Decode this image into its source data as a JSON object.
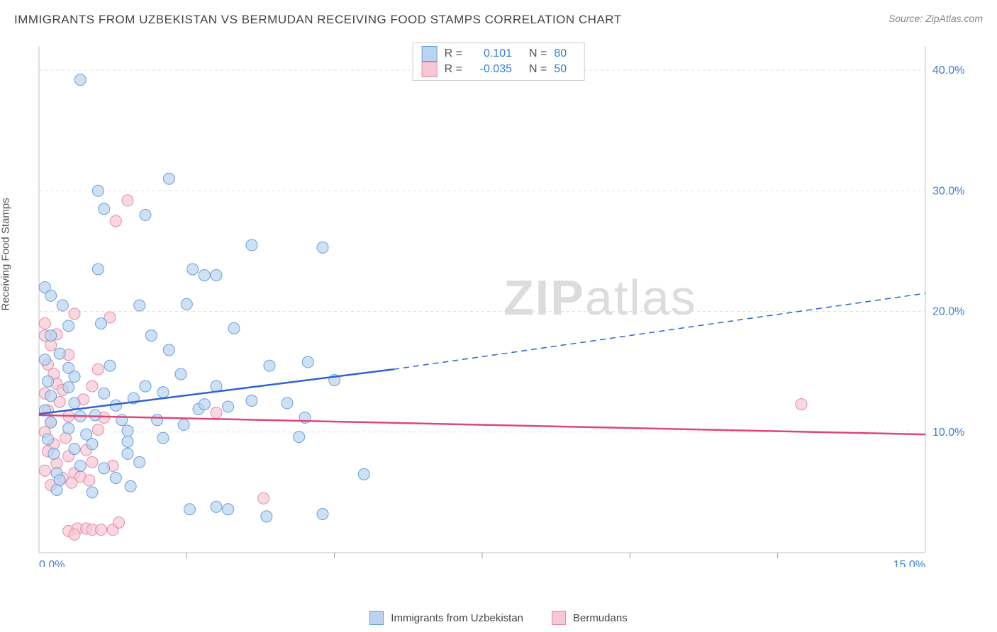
{
  "header": {
    "title": "IMMIGRANTS FROM UZBEKISTAN VS BERMUDAN RECEIVING FOOD STAMPS CORRELATION CHART",
    "source": "Source: ZipAtlas.com"
  },
  "chart": {
    "type": "scatter",
    "ylabel": "Receiving Food Stamps",
    "background_color": "#ffffff",
    "grid_color": "#e0e0e0",
    "axis_color": "#c0c0c0",
    "tick_color": "#a0a0a0",
    "label_color_blue": "#3b7dd8",
    "xlim": [
      0,
      15
    ],
    "ylim": [
      0,
      42
    ],
    "x_ticks": [
      {
        "pos": 0,
        "label": "0.0%"
      },
      {
        "pos": 15,
        "label": "15.0%"
      }
    ],
    "x_minor_ticks": [
      2.5,
      5,
      7.5,
      10,
      12.5
    ],
    "y_ticks": [
      {
        "pos": 10,
        "label": "10.0%"
      },
      {
        "pos": 20,
        "label": "20.0%"
      },
      {
        "pos": 30,
        "label": "30.0%"
      },
      {
        "pos": 40,
        "label": "40.0%"
      }
    ],
    "watermark": {
      "bold": "ZIP",
      "rest": "atlas"
    },
    "series": [
      {
        "name": "Immigrants from Uzbekistan",
        "color_fill": "#b9d3f0",
        "color_stroke": "#6a9fd8",
        "trend_color": "#2e64c9",
        "R": "0.101",
        "N": "80",
        "trend": {
          "x1": 0,
          "y1": 11.5,
          "x2_solid": 6.0,
          "y2_solid": 15.2,
          "x2_dash": 15,
          "y2_dash": 21.5
        },
        "marker_radius": 8,
        "points": [
          [
            0.7,
            39.2
          ],
          [
            1.0,
            30.0
          ],
          [
            2.2,
            31.0
          ],
          [
            1.1,
            28.5
          ],
          [
            1.8,
            28.0
          ],
          [
            2.6,
            23.5
          ],
          [
            2.8,
            23.0
          ],
          [
            3.6,
            25.5
          ],
          [
            4.8,
            25.3
          ],
          [
            3.0,
            23.0
          ],
          [
            1.0,
            23.5
          ],
          [
            1.7,
            20.5
          ],
          [
            2.5,
            20.6
          ],
          [
            3.3,
            18.6
          ],
          [
            0.1,
            22.0
          ],
          [
            0.2,
            21.3
          ],
          [
            0.4,
            20.5
          ],
          [
            0.5,
            18.8
          ],
          [
            0.2,
            18.0
          ],
          [
            0.35,
            16.5
          ],
          [
            0.1,
            16.0
          ],
          [
            0.5,
            15.3
          ],
          [
            0.6,
            14.6
          ],
          [
            0.15,
            14.2
          ],
          [
            0.5,
            13.7
          ],
          [
            0.2,
            13.0
          ],
          [
            0.6,
            12.4
          ],
          [
            0.1,
            11.8
          ],
          [
            0.7,
            11.3
          ],
          [
            0.2,
            10.8
          ],
          [
            0.5,
            10.3
          ],
          [
            0.8,
            9.8
          ],
          [
            0.15,
            9.4
          ],
          [
            0.9,
            9.0
          ],
          [
            0.6,
            8.6
          ],
          [
            0.25,
            8.2
          ],
          [
            0.7,
            7.2
          ],
          [
            0.3,
            6.6
          ],
          [
            0.35,
            6.0
          ],
          [
            0.3,
            5.2
          ],
          [
            0.9,
            5.0
          ],
          [
            1.1,
            13.2
          ],
          [
            1.2,
            15.5
          ],
          [
            1.3,
            12.2
          ],
          [
            1.4,
            11.0
          ],
          [
            1.5,
            10.1
          ],
          [
            1.5,
            9.2
          ],
          [
            1.5,
            8.2
          ],
          [
            1.6,
            12.8
          ],
          [
            1.7,
            7.5
          ],
          [
            1.55,
            5.5
          ],
          [
            1.1,
            7.0
          ],
          [
            1.3,
            6.2
          ],
          [
            0.95,
            11.4
          ],
          [
            2.0,
            11.0
          ],
          [
            2.1,
            13.3
          ],
          [
            2.2,
            16.8
          ],
          [
            2.1,
            9.5
          ],
          [
            2.4,
            14.8
          ],
          [
            2.7,
            11.9
          ],
          [
            2.8,
            12.3
          ],
          [
            2.45,
            10.6
          ],
          [
            3.2,
            12.1
          ],
          [
            3.6,
            12.6
          ],
          [
            3.0,
            13.8
          ],
          [
            2.55,
            3.6
          ],
          [
            3.0,
            3.8
          ],
          [
            3.2,
            3.6
          ],
          [
            3.9,
            15.5
          ],
          [
            3.85,
            3.0
          ],
          [
            4.2,
            12.4
          ],
          [
            4.5,
            11.2
          ],
          [
            4.55,
            15.8
          ],
          [
            4.8,
            3.2
          ],
          [
            5.5,
            6.5
          ],
          [
            4.4,
            9.6
          ],
          [
            5.0,
            14.3
          ],
          [
            1.8,
            13.8
          ],
          [
            1.9,
            18.0
          ],
          [
            1.05,
            19.0
          ]
        ]
      },
      {
        "name": "Bermudans",
        "color_fill": "#f6c8d4",
        "color_stroke": "#e48aa4",
        "trend_color": "#e0457a",
        "R": "-0.035",
        "N": "50",
        "trend": {
          "x1": 0,
          "y1": 11.4,
          "x2_solid": 15,
          "y2_solid": 9.8,
          "x2_dash": 15,
          "y2_dash": 9.8
        },
        "marker_radius": 8,
        "points": [
          [
            12.9,
            12.3
          ],
          [
            1.5,
            29.2
          ],
          [
            1.3,
            27.5
          ],
          [
            0.6,
            19.8
          ],
          [
            0.1,
            19.0
          ],
          [
            0.3,
            18.1
          ],
          [
            0.2,
            17.2
          ],
          [
            0.5,
            16.4
          ],
          [
            0.1,
            18.0
          ],
          [
            0.15,
            15.6
          ],
          [
            0.25,
            14.8
          ],
          [
            0.3,
            14.0
          ],
          [
            0.1,
            13.2
          ],
          [
            0.4,
            13.5
          ],
          [
            0.35,
            12.5
          ],
          [
            0.15,
            11.8
          ],
          [
            0.5,
            11.3
          ],
          [
            0.2,
            10.8
          ],
          [
            0.1,
            10.0
          ],
          [
            0.45,
            9.5
          ],
          [
            0.25,
            9.0
          ],
          [
            0.15,
            8.4
          ],
          [
            0.5,
            8.0
          ],
          [
            0.3,
            7.4
          ],
          [
            0.1,
            6.8
          ],
          [
            0.4,
            6.2
          ],
          [
            0.6,
            6.6
          ],
          [
            0.2,
            5.6
          ],
          [
            0.55,
            5.8
          ],
          [
            0.7,
            6.3
          ],
          [
            0.85,
            6.0
          ],
          [
            0.5,
            1.8
          ],
          [
            1.0,
            15.2
          ],
          [
            0.9,
            13.8
          ],
          [
            0.75,
            12.7
          ],
          [
            1.1,
            11.2
          ],
          [
            1.0,
            10.2
          ],
          [
            0.8,
            8.5
          ],
          [
            0.9,
            7.5
          ],
          [
            0.65,
            2.0
          ],
          [
            0.8,
            2.0
          ],
          [
            0.9,
            1.9
          ],
          [
            1.05,
            1.9
          ],
          [
            1.25,
            1.9
          ],
          [
            0.6,
            1.5
          ],
          [
            1.2,
            19.5
          ],
          [
            1.25,
            7.2
          ],
          [
            1.35,
            2.5
          ],
          [
            3.0,
            11.6
          ],
          [
            3.8,
            4.5
          ]
        ]
      }
    ],
    "bottom_legend": [
      {
        "label": "Immigrants from Uzbekistan",
        "fill": "#b9d3f0",
        "stroke": "#6a9fd8"
      },
      {
        "label": "Bermudans",
        "fill": "#f6c8d4",
        "stroke": "#e48aa4"
      }
    ]
  }
}
